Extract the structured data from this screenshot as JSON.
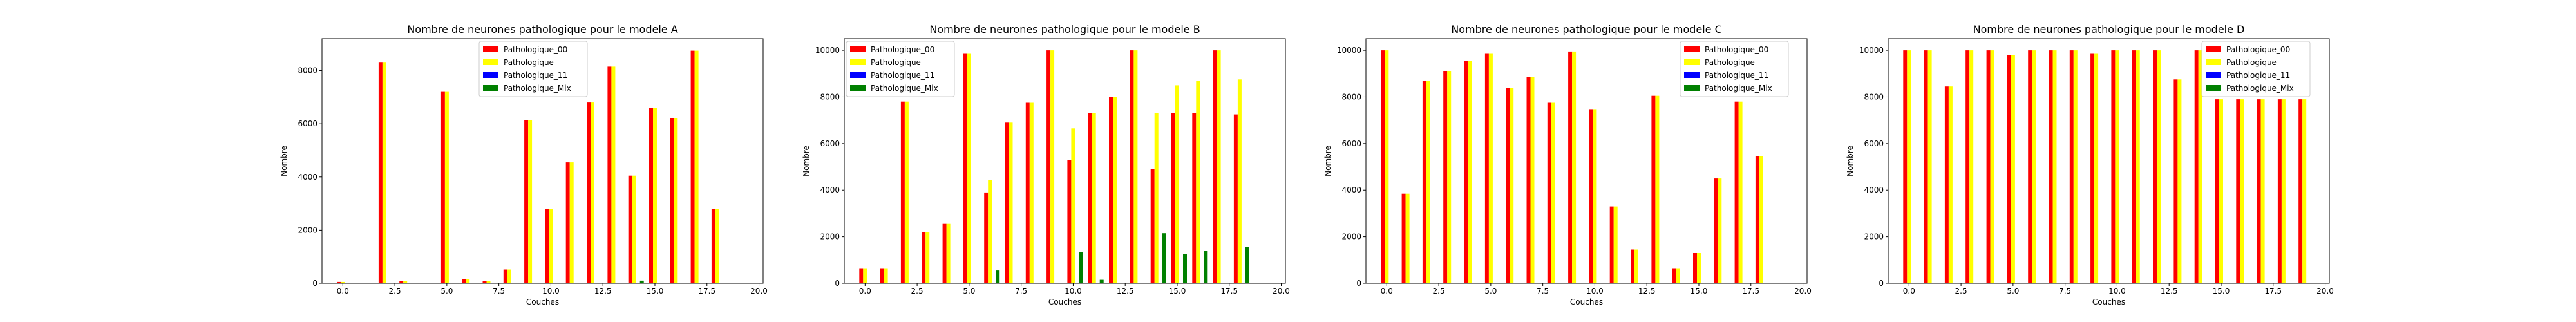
{
  "colors": {
    "Pathologique_00": "#ff0000",
    "Pathologique": "#ffff00",
    "Pathologique_11": "#0000ff",
    "Pathologique_Mix": "#008000"
  },
  "chart_data": [
    {
      "type": "bar",
      "title": "Nombre de neurones pathologique pour le modele A",
      "xlabel": "Couches",
      "ylabel": "Nombre",
      "xlim": [
        -1,
        20.2
      ],
      "ylim": [
        0,
        9200
      ],
      "xticks": [
        0.0,
        2.5,
        5.0,
        7.5,
        10.0,
        12.5,
        15.0,
        17.5,
        20.0
      ],
      "xtick_labels": [
        "0.0",
        "2.5",
        "5.0",
        "7.5",
        "10.0",
        "12.5",
        "15.0",
        "17.5",
        "20.0"
      ],
      "yticks": [
        0,
        2000,
        4000,
        6000,
        8000
      ],
      "ytick_labels": [
        "0",
        "2000",
        "4000",
        "6000",
        "8000"
      ],
      "grid": false,
      "legend": "top-right",
      "x": [
        0,
        1,
        2,
        3,
        4,
        5,
        6,
        7,
        8,
        9,
        10,
        11,
        12,
        13,
        14,
        15,
        16,
        17,
        18
      ],
      "series": [
        {
          "name": "Pathologique_00",
          "values": [
            50,
            0,
            8300,
            80,
            0,
            7200,
            150,
            80,
            520,
            6150,
            2800,
            4550,
            6800,
            8150,
            4050,
            6600,
            6200,
            8750,
            2800
          ]
        },
        {
          "name": "Pathologique",
          "values": [
            50,
            0,
            8300,
            80,
            0,
            7200,
            150,
            80,
            520,
            6150,
            2800,
            4550,
            6800,
            8150,
            4050,
            6600,
            6200,
            8750,
            2800
          ]
        },
        {
          "name": "Pathologique_11",
          "values": [
            0,
            0,
            0,
            0,
            0,
            0,
            0,
            0,
            0,
            0,
            0,
            0,
            0,
            0,
            0,
            0,
            0,
            0,
            0
          ]
        },
        {
          "name": "Pathologique_Mix",
          "values": [
            0,
            0,
            0,
            0,
            0,
            0,
            0,
            0,
            0,
            0,
            0,
            0,
            0,
            0,
            100,
            0,
            0,
            0,
            0
          ]
        }
      ]
    },
    {
      "type": "bar",
      "title": "Nombre de neurones pathologique pour le modele B",
      "xlabel": "Couches",
      "ylabel": "Nombre",
      "xlim": [
        -1,
        20.2
      ],
      "ylim": [
        0,
        10500
      ],
      "xticks": [
        0.0,
        2.5,
        5.0,
        7.5,
        10.0,
        12.5,
        15.0,
        17.5,
        20.0
      ],
      "xtick_labels": [
        "0.0",
        "2.5",
        "5.0",
        "7.5",
        "10.0",
        "12.5",
        "15.0",
        "17.5",
        "20.0"
      ],
      "yticks": [
        0,
        2000,
        4000,
        6000,
        8000,
        10000
      ],
      "ytick_labels": [
        "0",
        "2000",
        "4000",
        "6000",
        "8000",
        "10000"
      ],
      "grid": false,
      "legend": "top-left",
      "x": [
        0,
        1,
        2,
        3,
        4,
        5,
        6,
        7,
        8,
        9,
        10,
        11,
        12,
        13,
        14,
        15,
        16,
        17,
        18
      ],
      "series": [
        {
          "name": "Pathologique_00",
          "values": [
            650,
            650,
            7800,
            2200,
            2550,
            9850,
            3900,
            6900,
            7750,
            10000,
            5300,
            7300,
            8000,
            10000,
            4900,
            7300,
            7300,
            10000,
            7250
          ]
        },
        {
          "name": "Pathologique",
          "values": [
            650,
            650,
            7800,
            2200,
            2550,
            9850,
            4450,
            6900,
            7750,
            10000,
            6650,
            7300,
            8000,
            10000,
            7300,
            8500,
            8700,
            10000,
            8750
          ]
        },
        {
          "name": "Pathologique_11",
          "values": [
            0,
            0,
            0,
            0,
            0,
            0,
            0,
            0,
            0,
            0,
            0,
            0,
            0,
            0,
            0,
            0,
            0,
            0,
            0
          ]
        },
        {
          "name": "Pathologique_Mix",
          "values": [
            0,
            0,
            0,
            0,
            0,
            0,
            550,
            0,
            0,
            0,
            1350,
            150,
            0,
            0,
            2150,
            1250,
            1400,
            0,
            1550
          ]
        }
      ]
    },
    {
      "type": "bar",
      "title": "Nombre de neurones pathologique pour le modele C",
      "xlabel": "Couches",
      "ylabel": "Nombre",
      "xlim": [
        -1,
        20.2
      ],
      "ylim": [
        0,
        10500
      ],
      "xticks": [
        0.0,
        2.5,
        5.0,
        7.5,
        10.0,
        12.5,
        15.0,
        17.5,
        20.0
      ],
      "xtick_labels": [
        "0.0",
        "2.5",
        "5.0",
        "7.5",
        "10.0",
        "12.5",
        "15.0",
        "17.5",
        "20.0"
      ],
      "yticks": [
        0,
        2000,
        4000,
        6000,
        8000,
        10000
      ],
      "ytick_labels": [
        "0",
        "2000",
        "4000",
        "6000",
        "8000",
        "10000"
      ],
      "grid": false,
      "legend": "top-right",
      "x": [
        0,
        1,
        2,
        3,
        4,
        5,
        6,
        7,
        8,
        9,
        10,
        11,
        12,
        13,
        14,
        15,
        16,
        17,
        18
      ],
      "series": [
        {
          "name": "Pathologique_00",
          "values": [
            10000,
            3850,
            8700,
            9100,
            9550,
            9850,
            8400,
            8850,
            7750,
            9950,
            7450,
            3300,
            1450,
            8050,
            650,
            1300,
            4500,
            7800,
            5450
          ]
        },
        {
          "name": "Pathologique",
          "values": [
            10000,
            3850,
            8700,
            9100,
            9550,
            9850,
            8400,
            8850,
            7750,
            9950,
            7450,
            3300,
            1450,
            8050,
            650,
            1300,
            4500,
            7800,
            5450
          ]
        },
        {
          "name": "Pathologique_11",
          "values": [
            0,
            0,
            0,
            0,
            0,
            0,
            0,
            0,
            0,
            0,
            0,
            0,
            0,
            0,
            0,
            0,
            0,
            0,
            0
          ]
        },
        {
          "name": "Pathologique_Mix",
          "values": [
            0,
            0,
            0,
            0,
            0,
            0,
            0,
            0,
            0,
            0,
            0,
            0,
            0,
            0,
            0,
            0,
            0,
            0,
            0
          ]
        }
      ]
    },
    {
      "type": "bar",
      "title": "Nombre de neurones pathologique pour le modele D",
      "xlabel": "Couches",
      "ylabel": "Nombre",
      "xlim": [
        -1,
        20.2
      ],
      "ylim": [
        0,
        10500
      ],
      "xticks": [
        0.0,
        2.5,
        5.0,
        7.5,
        10.0,
        12.5,
        15.0,
        17.5,
        20.0
      ],
      "xtick_labels": [
        "0.0",
        "2.5",
        "5.0",
        "7.5",
        "10.0",
        "12.5",
        "15.0",
        "17.5",
        "20.0"
      ],
      "yticks": [
        0,
        2000,
        4000,
        6000,
        8000,
        10000
      ],
      "ytick_labels": [
        "0",
        "2000",
        "4000",
        "6000",
        "8000",
        "10000"
      ],
      "grid": false,
      "legend": "top-right",
      "x": [
        0,
        1,
        2,
        3,
        4,
        5,
        6,
        7,
        8,
        9,
        10,
        11,
        12,
        13,
        14,
        15,
        16,
        17,
        18,
        19
      ],
      "series": [
        {
          "name": "Pathologique_00",
          "values": [
            10000,
            10000,
            8450,
            10000,
            10000,
            9800,
            10000,
            10000,
            10000,
            9850,
            10000,
            10000,
            10000,
            8750,
            10000,
            7900,
            7900,
            7900,
            7900,
            7900
          ]
        },
        {
          "name": "Pathologique",
          "values": [
            10000,
            10000,
            8450,
            10000,
            10000,
            9800,
            10000,
            10000,
            10000,
            9850,
            10000,
            10000,
            10000,
            8750,
            10000,
            7900,
            7900,
            7900,
            7900,
            7900
          ]
        },
        {
          "name": "Pathologique_11",
          "values": [
            0,
            0,
            0,
            0,
            0,
            0,
            0,
            0,
            0,
            0,
            0,
            0,
            0,
            0,
            0,
            0,
            0,
            0,
            0,
            0
          ]
        },
        {
          "name": "Pathologique_Mix",
          "values": [
            0,
            0,
            0,
            0,
            0,
            0,
            0,
            0,
            0,
            0,
            0,
            0,
            0,
            0,
            0,
            0,
            0,
            0,
            0,
            0
          ]
        }
      ]
    }
  ]
}
